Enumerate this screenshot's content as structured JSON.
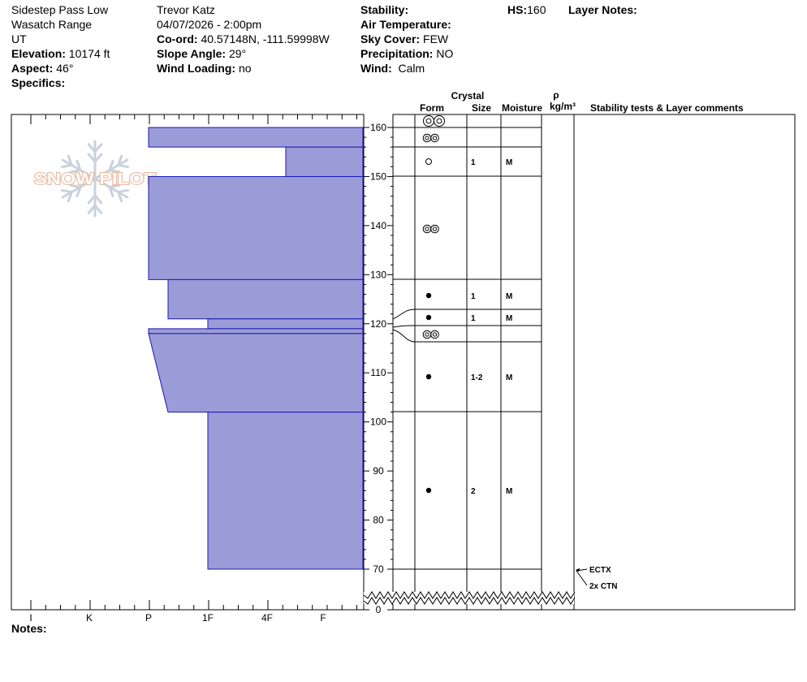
{
  "header": {
    "location": "Sidestep Pass Low",
    "range": "Wasatch Range",
    "state": "UT",
    "elevation_label": "Elevation:",
    "elevation_value": "10174 ft",
    "aspect_label": "Aspect:",
    "aspect_value": "46°",
    "specifics_label": "Specifics:",
    "observer": "Trevor Katz",
    "datetime": "04/07/2026 - 2:00pm",
    "coord_label": "Co-ord:",
    "coord_value": "40.57148N, -111.59998W",
    "slope_label": "Slope Angle:",
    "slope_value": "29°",
    "wind_loading_label": "Wind Loading:",
    "wind_loading_value": "no",
    "stability_label": "Stability:",
    "air_temp_label": "Air Temperature:",
    "sky_label": "Sky Cover:",
    "sky_value": "FEW",
    "precip_label": "Precipitation:",
    "precip_value": "NO",
    "wind_label": "Wind:",
    "wind_value": "Calm",
    "hs_label": "HS:",
    "hs_value": "160",
    "layer_notes_label": "Layer Notes:",
    "notes_label": "Notes:"
  },
  "watermark": {
    "text": "SNOW PILOT"
  },
  "columns": {
    "crystal": "Crystal",
    "form": "Form",
    "size": "Size",
    "moisture": "Moisture",
    "rho": "ρ",
    "density_unit": "kg/m³",
    "stability": "Stability tests & Layer comments"
  },
  "hardness_ticks": [
    "I",
    "K",
    "P",
    "1F",
    "4F",
    "F"
  ],
  "height_ticks": [
    "160",
    "150",
    "140",
    "130",
    "120",
    "110",
    "100",
    "90",
    "80",
    "70",
    "0"
  ],
  "colors": {
    "layer_fill": "#9b9bd7",
    "layer_stroke": "#1a1ab0"
  },
  "chart_data": {
    "type": "snow-profile",
    "total_depth_cm": 160,
    "hardness_scale": [
      "F",
      "4F",
      "1F",
      "P",
      "K",
      "I"
    ],
    "layers": [
      {
        "top": 160,
        "bottom": 156,
        "hardness_top": "P",
        "hardness_bottom": "P",
        "form": "rounds-pair-large",
        "size": "",
        "moisture": ""
      },
      {
        "top": 156,
        "bottom": 150,
        "hardness_top": "4F-",
        "hardness_bottom": "4F-",
        "form": "rounds-pair",
        "size": "",
        "moisture": ""
      },
      {
        "top": 150,
        "bottom": 129,
        "hardness_top": "P",
        "hardness_bottom": "P",
        "form": "precipitation-particles",
        "size": "1",
        "moisture": "M"
      },
      {
        "top": 129,
        "bottom": 121,
        "hardness_top": "P-",
        "hardness_bottom": "P-",
        "form": "rounds-pair",
        "size": "",
        "moisture": ""
      },
      {
        "top": 121,
        "bottom": 119,
        "hardness_top": "1F",
        "hardness_bottom": "1F",
        "form": "melt-forms",
        "size": "1",
        "moisture": "M"
      },
      {
        "top": 119,
        "bottom": 118,
        "hardness_top": "P",
        "hardness_bottom": "P",
        "form": "melt-forms",
        "size": "1",
        "moisture": "M"
      },
      {
        "top": 118,
        "bottom": 102,
        "hardness_top": "P",
        "hardness_bottom": "P-",
        "form": "rounds-pair",
        "size": "",
        "moisture": ""
      },
      {
        "top": 102,
        "bottom": 70,
        "hardness_top": "1F",
        "hardness_bottom": "1F",
        "form": "melt-forms",
        "size": "1-2",
        "moisture": "M"
      }
    ],
    "form_rows": [
      {
        "top": 160,
        "bottom": 156,
        "form": "rounds-pair-large",
        "size": "",
        "moisture": ""
      },
      {
        "top": 156,
        "bottom": 150,
        "form": "rounds-pair",
        "size": "",
        "moisture": ""
      },
      {
        "top": 150,
        "bottom": 144,
        "form": "precipitation-particles",
        "size": "1",
        "moisture": "M"
      },
      {
        "top": 144,
        "bottom": 123,
        "form": "rounds-pair",
        "size": "",
        "moisture": ""
      },
      {
        "top": 123,
        "bottom": 117,
        "form": "melt-forms",
        "size": "1",
        "moisture": "M"
      },
      {
        "top": 117,
        "bottom": 114,
        "form": "melt-forms",
        "size": "1",
        "moisture": "M"
      },
      {
        "top": 114,
        "bottom": 110,
        "form": "rounds-pair",
        "size": "",
        "moisture": ""
      },
      {
        "top": 110,
        "bottom": 96,
        "form": "melt-forms",
        "size": "1-2",
        "moisture": "M"
      },
      {
        "top": 96,
        "bottom": 70,
        "form": "melt-forms",
        "size": "2",
        "moisture": "M"
      }
    ],
    "stability_tests": [
      {
        "depth": 70,
        "label": "ECTX"
      },
      {
        "depth": 70,
        "label": "2x CTN"
      }
    ]
  }
}
